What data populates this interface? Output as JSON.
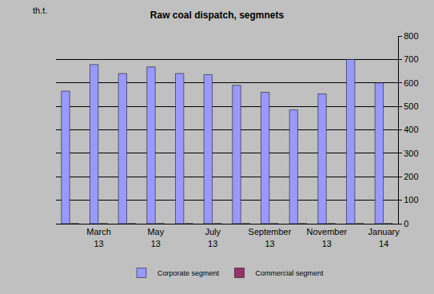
{
  "chart_data": {
    "type": "bar",
    "title": "Raw coal dispatch, segmnets",
    "y_label": "th.t.",
    "categories": [
      null,
      "March 13",
      null,
      "May 13",
      null,
      "July 13",
      null,
      "September 13",
      null,
      "November 13",
      null,
      "January 14"
    ],
    "series": [
      {
        "name": "Corporate segment",
        "color": "#9999ff",
        "values": [
          565,
          678,
          640,
          668,
          640,
          635,
          590,
          560,
          485,
          553,
          700,
          600
        ]
      },
      {
        "name": "Commercial segment",
        "color": "#993366",
        "values": [
          0,
          0,
          0,
          0,
          0,
          0,
          0,
          0,
          0,
          0,
          0,
          0
        ]
      }
    ],
    "ylim": [
      0,
      800
    ],
    "yticks": [
      0,
      100,
      200,
      300,
      400,
      500,
      600,
      700,
      800
    ],
    "grid": true,
    "legend": "bottom"
  }
}
